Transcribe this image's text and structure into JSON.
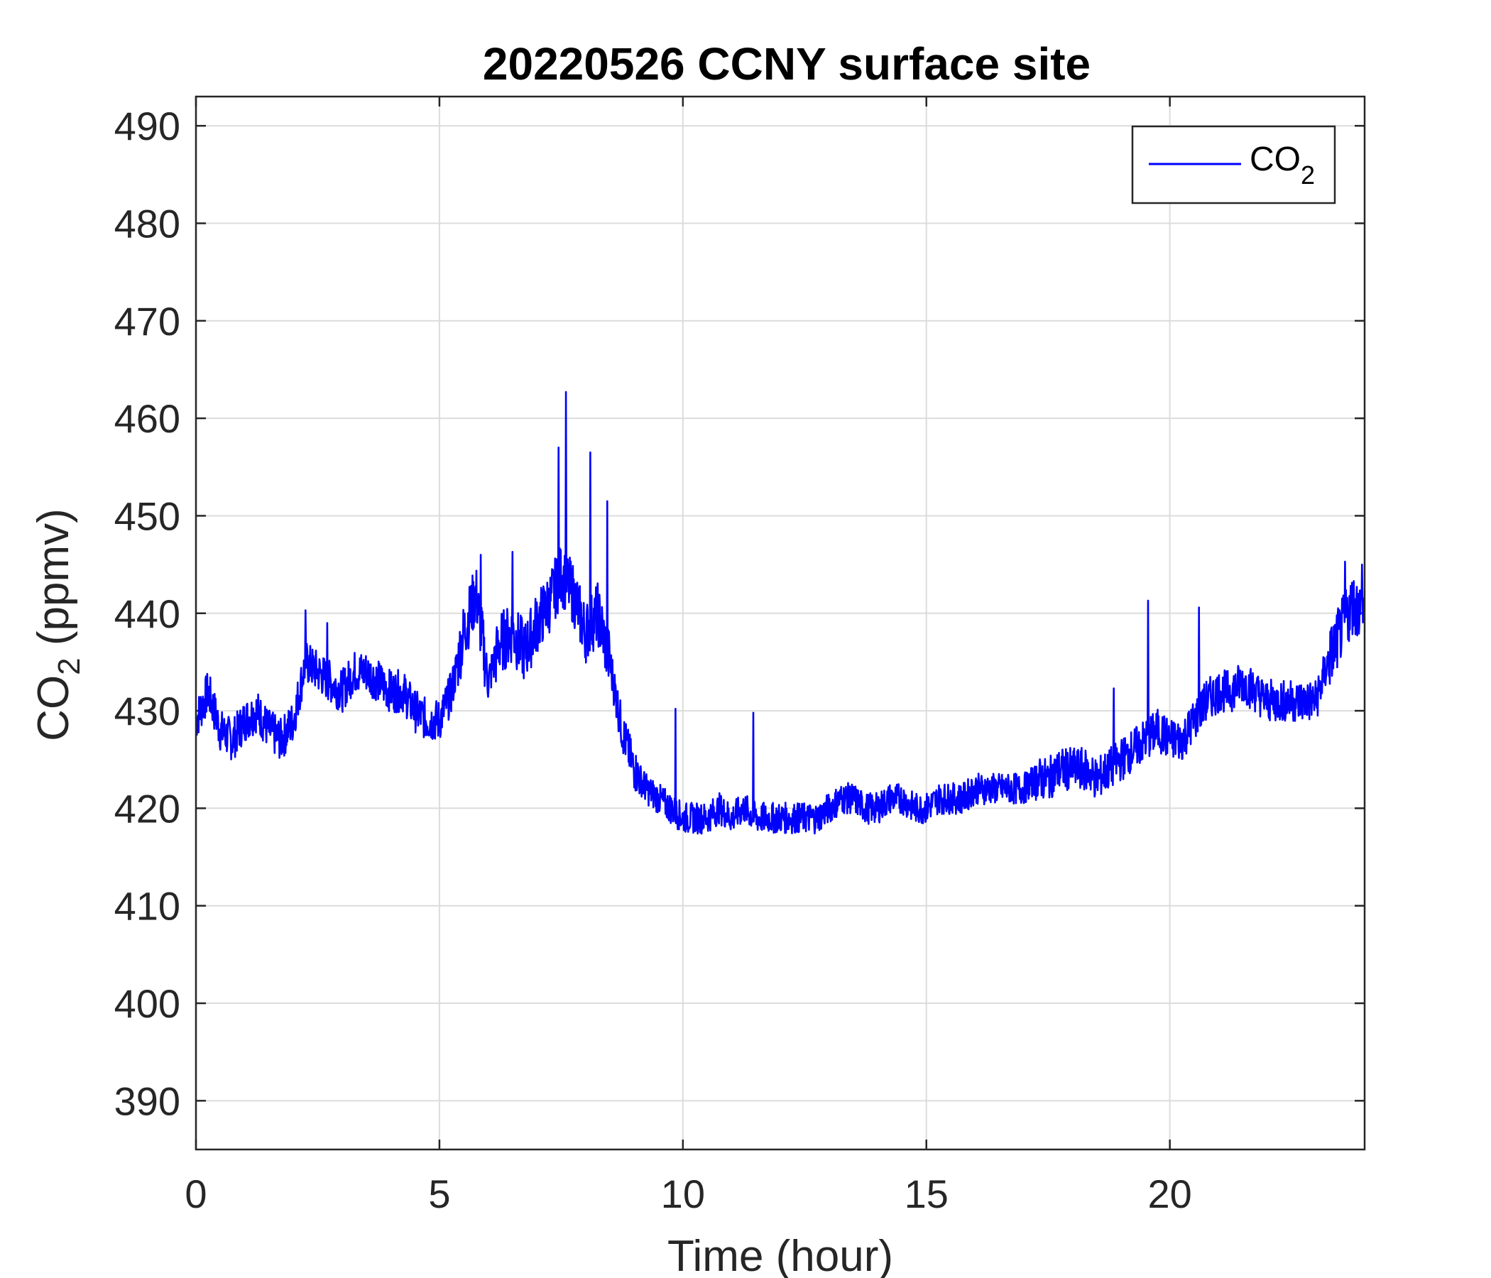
{
  "chart_data": {
    "type": "line",
    "title": "20220526 CCNY surface site",
    "xlabel": "Time (hour)",
    "ylabel": {
      "main": "CO",
      "sub": "2",
      "suffix": " (ppmv)"
    },
    "xlim": [
      0,
      24
    ],
    "ylim": [
      385,
      493
    ],
    "xticks": [
      0,
      5,
      10,
      15,
      20
    ],
    "yticks": [
      390,
      400,
      410,
      420,
      430,
      440,
      450,
      460,
      470,
      480,
      490
    ],
    "grid": true,
    "legend_position": "top-right",
    "series": [
      {
        "name": {
          "main": "CO",
          "sub": "2"
        },
        "color": "#0000ff",
        "x": [
          0,
          0.25,
          0.5,
          0.75,
          1.0,
          1.25,
          1.5,
          1.75,
          2.0,
          2.25,
          2.5,
          2.75,
          3.0,
          3.25,
          3.5,
          3.75,
          4.0,
          4.25,
          4.5,
          4.75,
          5.0,
          5.25,
          5.5,
          5.75,
          6.0,
          6.25,
          6.5,
          6.75,
          7.0,
          7.25,
          7.5,
          7.75,
          8.0,
          8.25,
          8.5,
          8.75,
          9.0,
          9.25,
          9.5,
          9.75,
          10.0,
          10.25,
          10.5,
          10.75,
          11.0,
          11.25,
          11.5,
          11.75,
          12.0,
          12.25,
          12.5,
          12.75,
          13.0,
          13.25,
          13.5,
          13.75,
          14.0,
          14.25,
          14.5,
          14.75,
          15.0,
          15.25,
          15.5,
          15.75,
          16.0,
          16.25,
          16.5,
          16.75,
          17.0,
          17.25,
          17.5,
          17.75,
          18.0,
          18.25,
          18.5,
          18.75,
          19.0,
          19.25,
          19.5,
          19.75,
          20.0,
          20.25,
          20.5,
          20.75,
          21.0,
          21.25,
          21.5,
          21.75,
          22.0,
          22.25,
          22.5,
          22.75,
          23.0,
          23.25,
          23.5,
          23.75,
          24.0
        ],
        "y": [
          429,
          432,
          428,
          427,
          429,
          430,
          428,
          427,
          429,
          435,
          434,
          433,
          432,
          434,
          434,
          433,
          432,
          432,
          430,
          429,
          429,
          432,
          438,
          442,
          433,
          437,
          438,
          436,
          439,
          441,
          444,
          442,
          438,
          440,
          435,
          428,
          424,
          422,
          421,
          420,
          419,
          419,
          419,
          420,
          419,
          420,
          419,
          419,
          419,
          419,
          419,
          419,
          420,
          421,
          421,
          420,
          420,
          421,
          421,
          420,
          420,
          421,
          421,
          421,
          422,
          422,
          422,
          422,
          422,
          423,
          423,
          424,
          424,
          424,
          423,
          424,
          425,
          426,
          427,
          428,
          427,
          427,
          429,
          431,
          432,
          432,
          433,
          432,
          431,
          431,
          431,
          431,
          431,
          435,
          438,
          441,
          440
        ]
      }
    ],
    "spikes": [
      {
        "x": 2.25,
        "y": 440.3
      },
      {
        "x": 2.7,
        "y": 439
      },
      {
        "x": 5.85,
        "y": 446
      },
      {
        "x": 6.5,
        "y": 446.3
      },
      {
        "x": 7.45,
        "y": 457
      },
      {
        "x": 7.6,
        "y": 462.7
      },
      {
        "x": 8.1,
        "y": 456.5
      },
      {
        "x": 8.45,
        "y": 451.5
      },
      {
        "x": 9.85,
        "y": 430.2
      },
      {
        "x": 11.45,
        "y": 429.8
      },
      {
        "x": 18.85,
        "y": 432.3
      },
      {
        "x": 19.55,
        "y": 441.3
      },
      {
        "x": 20.6,
        "y": 440.6
      },
      {
        "x": 23.6,
        "y": 445.3
      },
      {
        "x": 23.95,
        "y": 445
      }
    ]
  }
}
